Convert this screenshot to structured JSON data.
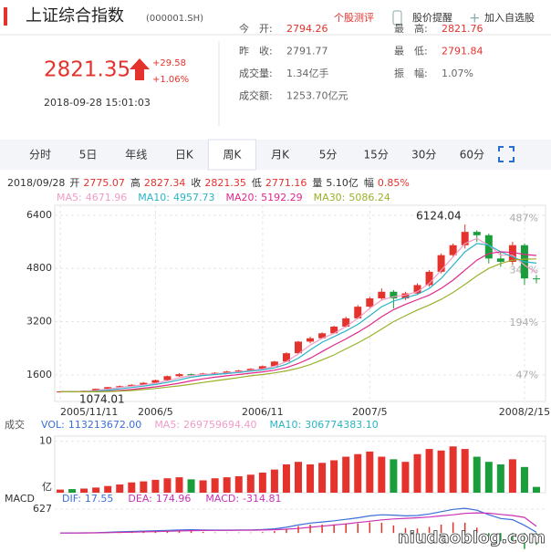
{
  "header": {
    "title": "上证综合指数",
    "code": "(000001.SH)",
    "links": [
      "个股测评",
      "股价提醒",
      "加入自选股"
    ]
  },
  "quote": {
    "price": "2821.35",
    "change": "+29.58",
    "change_pct": "+1.06%",
    "datetime": "2018-09-28 15:01:03"
  },
  "stats": [
    {
      "label": "今　开:",
      "value": "2794.26",
      "color": "#e4322c"
    },
    {
      "label": "昨　收:",
      "value": "2791.77",
      "color": "#666"
    },
    {
      "label": "成交量:",
      "value": "1.34亿手",
      "color": "#666"
    },
    {
      "label": "成交额:",
      "value": "1253.70亿元",
      "color": "#666"
    },
    {
      "label": "最　高:",
      "value": "2821.76",
      "color": "#e4322c"
    },
    {
      "label": "最　低:",
      "value": "2791.84",
      "color": "#e4322c"
    },
    {
      "label": "振　幅:",
      "value": "1.07%",
      "color": "#666"
    }
  ],
  "tabs": {
    "items": [
      "分时",
      "5日",
      "年线",
      "日K",
      "周K",
      "月K",
      "5分",
      "15分",
      "30分",
      "60分"
    ],
    "active": 4
  },
  "info_row": {
    "date": "2018/09/28",
    "items": [
      {
        "label": "开",
        "value": "2775.07",
        "color": "#e4322c"
      },
      {
        "label": "高",
        "value": "2827.34",
        "color": "#e4322c"
      },
      {
        "label": "收",
        "value": "2821.35",
        "color": "#e4322c"
      },
      {
        "label": "低",
        "value": "2771.16",
        "color": "#e4322c"
      },
      {
        "label": "量",
        "value": "5.10亿",
        "color": "#333"
      },
      {
        "label": "幅",
        "value": "0.85%",
        "color": "#e4322c"
      }
    ]
  },
  "watermark": "niudaoblog.com",
  "chart_data": [
    {
      "type": "candlestick",
      "up_color": "#e4322c",
      "down_color": "#1a9e3b",
      "grid": true,
      "categories": [
        "2005/11/11",
        null,
        null,
        null,
        null,
        null,
        null,
        null,
        "2006/5",
        null,
        null,
        null,
        null,
        null,
        null,
        null,
        null,
        "2006/11",
        null,
        null,
        null,
        null,
        null,
        null,
        null,
        null,
        "2007/5",
        null,
        null,
        null,
        null,
        null,
        null,
        null,
        null,
        null,
        null,
        null,
        null,
        "2008/2/15",
        null
      ],
      "open": [
        1085,
        1100,
        1090,
        1120,
        1180,
        1230,
        1260,
        1300,
        1360,
        1440,
        1560,
        1620,
        1590,
        1640,
        1660,
        1700,
        1730,
        1780,
        1860,
        2000,
        2250,
        2600,
        2700,
        2850,
        3050,
        3300,
        3650,
        3900,
        4100,
        3900,
        4050,
        4300,
        4700,
        5200,
        5500,
        5900,
        5800,
        5100,
        5000,
        5500,
        4500
      ],
      "high": [
        1110,
        1115,
        1130,
        1190,
        1240,
        1280,
        1320,
        1380,
        1460,
        1580,
        1650,
        1640,
        1660,
        1680,
        1720,
        1750,
        1800,
        1880,
        2020,
        2280,
        2620,
        2750,
        2880,
        3080,
        3350,
        3700,
        3950,
        4200,
        4150,
        4100,
        4350,
        4750,
        5250,
        5550,
        6124.04,
        5950,
        5850,
        5300,
        5600,
        5550,
        4600
      ],
      "low": [
        1075,
        1074.01,
        1080,
        1110,
        1170,
        1220,
        1250,
        1290,
        1350,
        1430,
        1540,
        1570,
        1580,
        1630,
        1650,
        1690,
        1720,
        1770,
        1850,
        1980,
        2230,
        2550,
        2680,
        2830,
        3020,
        3280,
        3600,
        3850,
        3600,
        3850,
        4000,
        4250,
        4650,
        5150,
        5400,
        5600,
        4950,
        4850,
        4900,
        4300,
        4350
      ],
      "close": [
        1100,
        1090,
        1120,
        1180,
        1230,
        1260,
        1300,
        1360,
        1440,
        1560,
        1620,
        1590,
        1640,
        1660,
        1700,
        1730,
        1780,
        1860,
        2000,
        2250,
        2600,
        2700,
        2850,
        3050,
        3300,
        3650,
        3900,
        4100,
        3900,
        4050,
        4300,
        4700,
        5200,
        5500,
        5900,
        5800,
        5100,
        5000,
        5500,
        4500,
        4480
      ],
      "series": [
        {
          "name": "MA5:",
          "value": 4671.96,
          "color": "#f29cc8",
          "values": [
            1090,
            1092,
            1100,
            1130,
            1170,
            1220,
            1260,
            1300,
            1350,
            1420,
            1510,
            1580,
            1610,
            1630,
            1660,
            1690,
            1730,
            1780,
            1860,
            2000,
            2230,
            2500,
            2700,
            2850,
            3050,
            3300,
            3600,
            3850,
            3950,
            4000,
            4100,
            4350,
            4750,
            5150,
            5550,
            5700,
            5500,
            5200,
            5200,
            4900,
            4670
          ]
        },
        {
          "name": "MA10:",
          "value": 4957.73,
          "color": "#2ab4c6",
          "values": [
            1090,
            1090,
            1095,
            1110,
            1140,
            1180,
            1220,
            1260,
            1310,
            1370,
            1450,
            1530,
            1580,
            1610,
            1640,
            1670,
            1710,
            1750,
            1810,
            1920,
            2100,
            2350,
            2580,
            2750,
            2920,
            3120,
            3380,
            3650,
            3820,
            3920,
            4020,
            4200,
            4500,
            4900,
            5300,
            5550,
            5500,
            5300,
            5150,
            5000,
            4960
          ]
        },
        {
          "name": "MA20:",
          "value": 5192.29,
          "color": "#e0288c",
          "values": [
            1090,
            1090,
            1090,
            1095,
            1110,
            1130,
            1160,
            1200,
            1240,
            1290,
            1350,
            1420,
            1480,
            1530,
            1570,
            1610,
            1650,
            1690,
            1740,
            1820,
            1940,
            2100,
            2300,
            2500,
            2680,
            2880,
            3100,
            3350,
            3560,
            3720,
            3860,
            4000,
            4200,
            4450,
            4750,
            5050,
            5250,
            5300,
            5280,
            5220,
            5190
          ]
        },
        {
          "name": "MA30:",
          "value": 5086.24,
          "color": "#9cb02a",
          "values": [
            1090,
            1090,
            1090,
            1090,
            1100,
            1110,
            1130,
            1160,
            1190,
            1230,
            1270,
            1320,
            1370,
            1420,
            1470,
            1520,
            1570,
            1610,
            1660,
            1720,
            1800,
            1910,
            2050,
            2200,
            2380,
            2560,
            2760,
            2980,
            3200,
            3380,
            3550,
            3700,
            3870,
            4080,
            4320,
            4580,
            4800,
            4950,
            5050,
            5080,
            5086
          ]
        }
      ],
      "ylim": [
        800,
        6700
      ],
      "yticks": [
        1600,
        3200,
        4800,
        6400
      ],
      "y2lim": [
        -25.5,
        523.8
      ],
      "y2ticks": [
        {
          "value": 47,
          "label": "47%"
        },
        {
          "value": 194,
          "label": "194%"
        },
        {
          "value": 341,
          "label": "341%"
        },
        {
          "value": 487,
          "label": "487%"
        }
      ]
    },
    {
      "type": "bar",
      "title": "成交",
      "unit": "亿",
      "legend": [
        {
          "name": "VOL:",
          "value": "113213672.00",
          "color": "#3a6fd8"
        },
        {
          "name": "MA5:",
          "value": "269759694.40",
          "color": "#f29cc8"
        },
        {
          "name": "MA10:",
          "value": "306774383.10",
          "color": "#2ab4c6"
        }
      ],
      "values": [
        0.6,
        0.7,
        0.8,
        1.0,
        1.3,
        1.6,
        2.0,
        2.2,
        2.5,
        2.8,
        3.0,
        2.6,
        2.4,
        2.8,
        3.0,
        3.2,
        3.5,
        3.9,
        4.5,
        5.5,
        6.0,
        5.5,
        5.8,
        6.3,
        7.0,
        7.5,
        8.0,
        7.0,
        6.5,
        6.0,
        7.5,
        8.5,
        8.2,
        9.0,
        8.5,
        7.0,
        6.0,
        5.5,
        6.5,
        5.0,
        1.13
      ],
      "ylim": [
        0,
        11
      ],
      "yticks": [
        10
      ]
    },
    {
      "type": "macd",
      "title": "MACD",
      "up_color": "#e4322c",
      "down_color": "#1a9e3b",
      "series": [
        {
          "name": "DIF:",
          "value": 17.55,
          "color": "#3a6fd8",
          "style": "line",
          "values": [
            0,
            0,
            5,
            10,
            20,
            30,
            40,
            50,
            60,
            70,
            80,
            85,
            80,
            75,
            75,
            78,
            80,
            90,
            110,
            150,
            210,
            260,
            290,
            320,
            360,
            400,
            450,
            480,
            470,
            450,
            460,
            500,
            560,
            620,
            650,
            600,
            480,
            380,
            350,
            200,
            17.55
          ]
        },
        {
          "name": "DEA:",
          "value": 174.96,
          "color": "#c832b4",
          "style": "line",
          "values": [
            0,
            0,
            2,
            5,
            10,
            15,
            22,
            30,
            38,
            46,
            55,
            62,
            66,
            68,
            70,
            72,
            74,
            78,
            85,
            100,
            120,
            150,
            180,
            210,
            240,
            275,
            310,
            345,
            370,
            385,
            400,
            420,
            450,
            480,
            515,
            530,
            520,
            490,
            460,
            410,
            174.96
          ]
        },
        {
          "name": "MACD:",
          "value": -314.81,
          "color": "#c832b4",
          "style": "bar",
          "values": [
            0,
            0,
            6,
            10,
            20,
            30,
            36,
            40,
            44,
            48,
            50,
            46,
            28,
            14,
            10,
            12,
            12,
            24,
            50,
            100,
            180,
            220,
            220,
            220,
            240,
            250,
            280,
            270,
            200,
            130,
            120,
            160,
            220,
            280,
            270,
            140,
            -80,
            -220,
            -220,
            -420,
            -314.81
          ]
        }
      ],
      "ylim": [
        -500,
        700
      ],
      "yticks": [
        627
      ]
    }
  ]
}
